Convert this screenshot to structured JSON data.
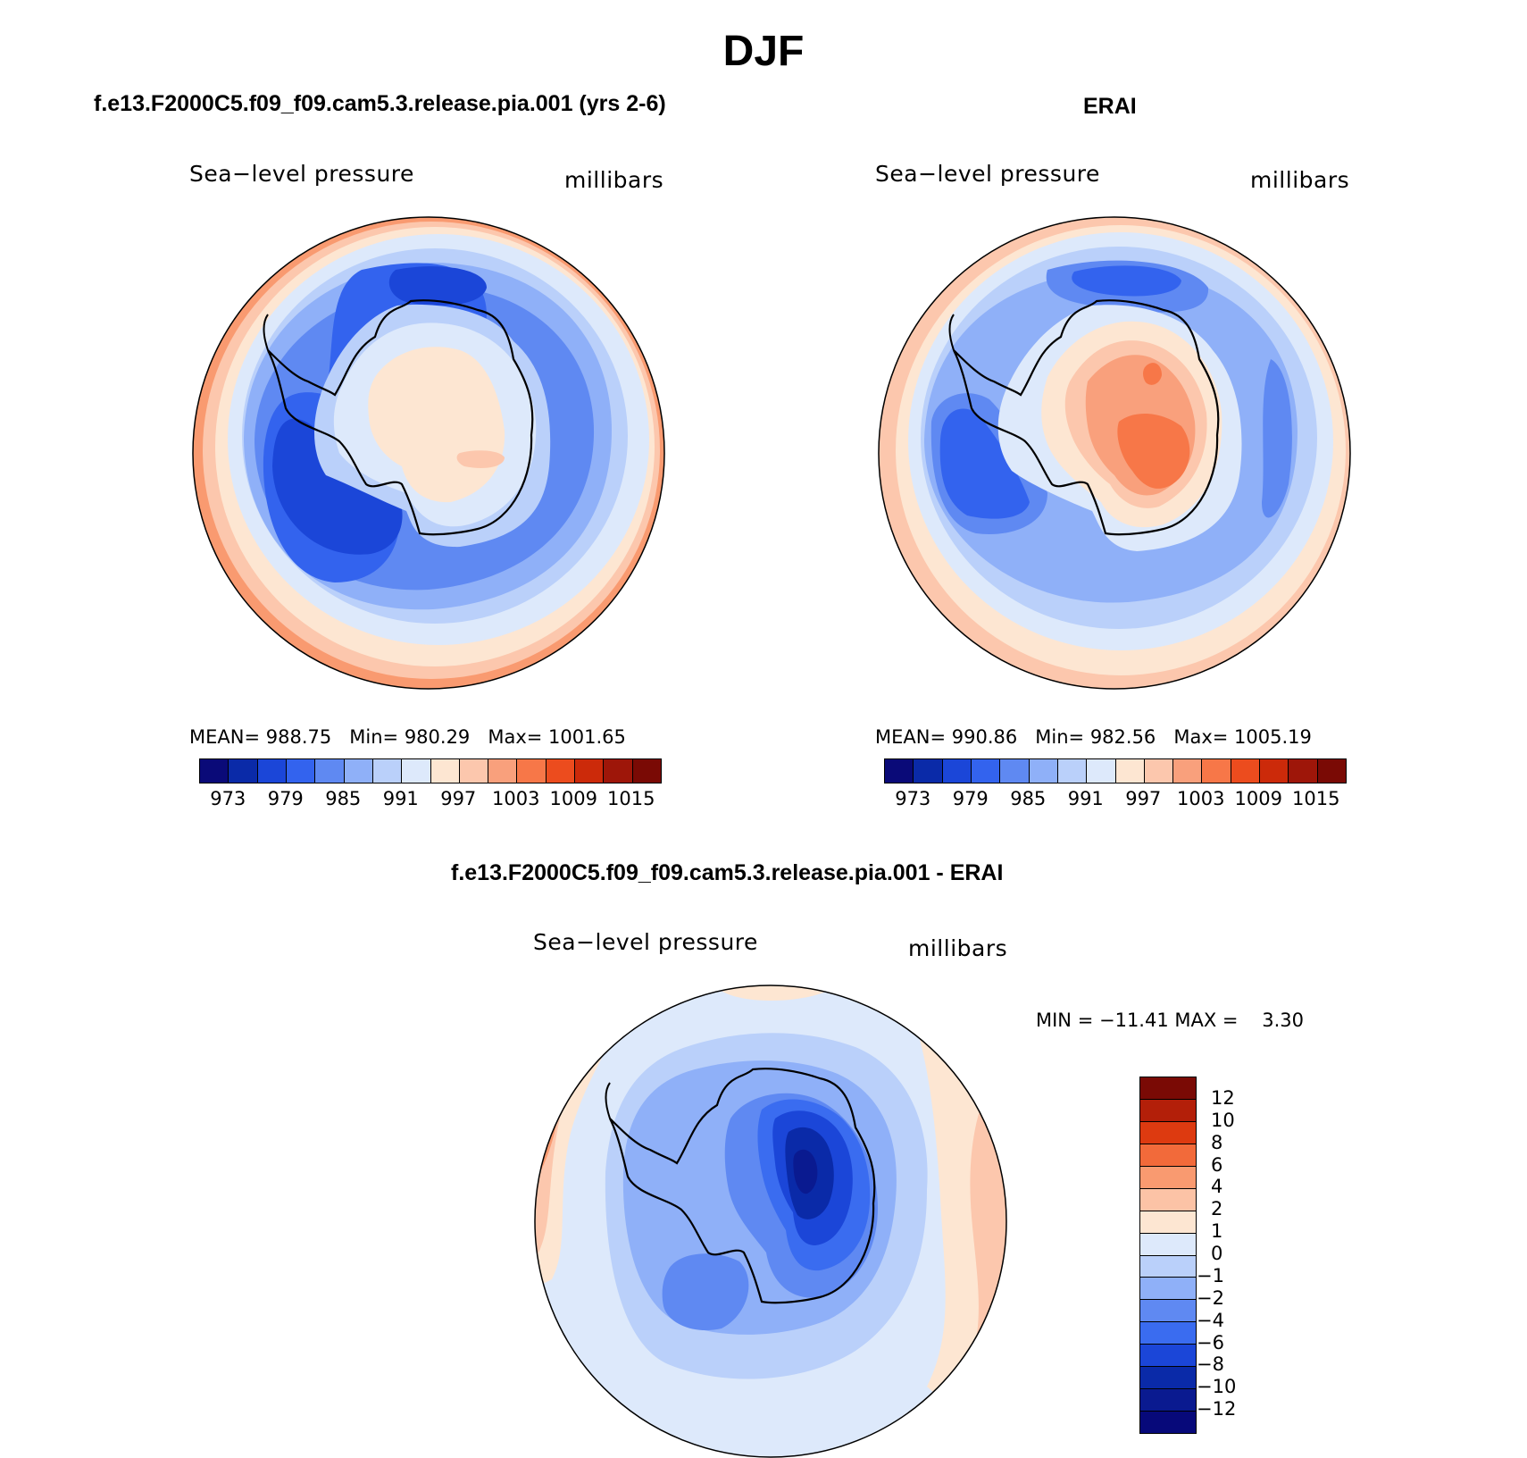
{
  "page": {
    "title": "DJF"
  },
  "chart_data": [
    {
      "type": "heatmap",
      "title": "f.e13.F2000C5.f09_f09.cam5.3.release.pia.001 (yrs 2-6)",
      "variable": "Sea−level pressure",
      "units": "millibars",
      "projection": "South polar stereographic",
      "stats": {
        "mean_label": "MEAN=",
        "mean": "988.75",
        "min_label": "Min=",
        "min": "980.29",
        "max_label": "Max=",
        "max": "1001.65"
      },
      "levels": [
        "973",
        "979",
        "985",
        "991",
        "997",
        "1003",
        "1009",
        "1015"
      ],
      "colors": [
        "#0a0a78",
        "#0a2aa8",
        "#1b46d8",
        "#3363ee",
        "#5f89f2",
        "#8fb0f8",
        "#bad0fa",
        "#dde9fb",
        "#fde6d2",
        "#fcc7ad",
        "#f9a07c",
        "#f77748",
        "#ec4c1e",
        "#cc2a0a",
        "#9e1609",
        "#7a0a05"
      ]
    },
    {
      "type": "heatmap",
      "title": "ERAI",
      "variable": "Sea−level pressure",
      "units": "millibars",
      "projection": "South polar stereographic",
      "stats": {
        "mean_label": "MEAN=",
        "mean": "990.86",
        "min_label": "Min=",
        "min": "982.56",
        "max_label": "Max=",
        "max": "1005.19"
      },
      "levels": [
        "973",
        "979",
        "985",
        "991",
        "997",
        "1003",
        "1009",
        "1015"
      ],
      "colors": [
        "#0a0a78",
        "#0a2aa8",
        "#1b46d8",
        "#3363ee",
        "#5f89f2",
        "#8fb0f8",
        "#bad0fa",
        "#dde9fb",
        "#fde6d2",
        "#fcc7ad",
        "#f9a07c",
        "#f77748",
        "#ec4c1e",
        "#cc2a0a",
        "#9e1609",
        "#7a0a05"
      ]
    },
    {
      "type": "heatmap",
      "title": "f.e13.F2000C5.f09_f09.cam5.3.release.pia.001 - ERAI",
      "variable": "Sea−level pressure",
      "units": "millibars",
      "projection": "South polar stereographic",
      "stats": {
        "min_label": "MIN =",
        "min": "−11.41",
        "max_label": "MAX =",
        "max": "3.30"
      },
      "levels": [
        "12",
        "10",
        "8",
        "6",
        "4",
        "2",
        "1",
        "0",
        "−1",
        "−2",
        "−4",
        "−6",
        "−8",
        "−10",
        "−12"
      ],
      "colors": [
        "#7a0a05",
        "#b31f09",
        "#dd3a10",
        "#f26a3a",
        "#f99a70",
        "#fcc3a6",
        "#fde6d2",
        "#dde9fb",
        "#bad0fa",
        "#8fb0f8",
        "#5f89f2",
        "#3a6cf0",
        "#1b46d8",
        "#0a2aa8",
        "#0a1a90",
        "#07097a"
      ]
    }
  ]
}
